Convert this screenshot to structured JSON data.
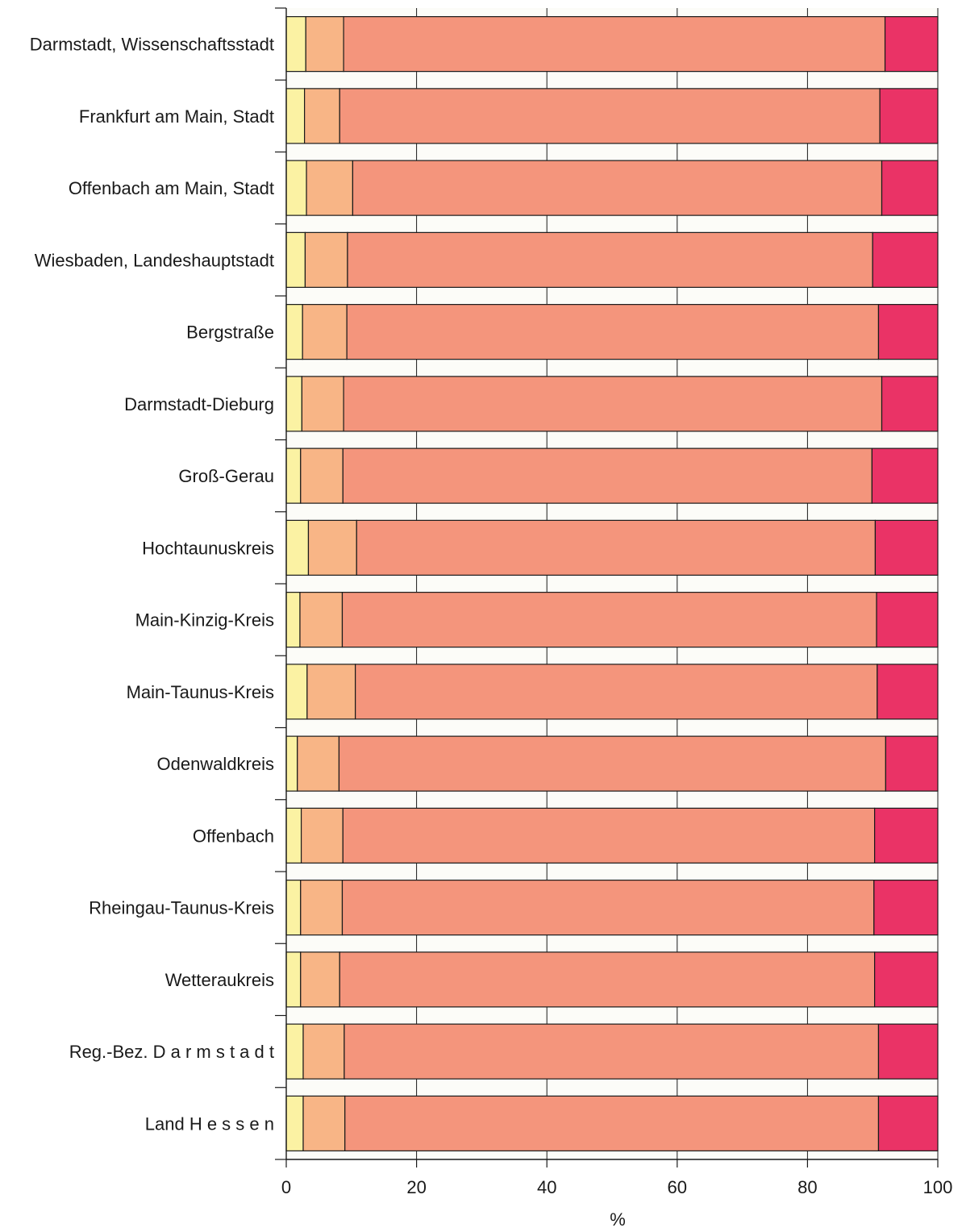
{
  "chart_data": {
    "type": "bar",
    "orientation": "horizontal",
    "stacked": true,
    "xlabel": "%",
    "xlim": [
      0,
      100
    ],
    "xticks": [
      0,
      20,
      40,
      60,
      80,
      100
    ],
    "xtick_labels": [
      "0",
      "20",
      "40",
      "60",
      "80",
      "100"
    ],
    "grid": true,
    "categories": [
      "Darmstadt, Wissenschaftsstadt",
      "Frankfurt am Main, Stadt",
      "Offenbach am Main, Stadt",
      "Wiesbaden, Landeshauptstadt",
      "Bergstraße",
      "Darmstadt-Dieburg",
      "Groß-Gerau",
      "Hochtaunuskreis",
      "Main-Kinzig-Kreis",
      "Main-Taunus-Kreis",
      "Odenwaldkreis",
      "Offenbach",
      "Rheingau-Taunus-Kreis",
      "Wetteraukreis",
      "Reg.-Bez. D a r m s t a d t",
      "Land H e s s e n"
    ],
    "series": [
      {
        "color": "#FBF2A3",
        "values": [
          3.0,
          2.8,
          3.1,
          2.9,
          2.5,
          2.4,
          2.2,
          3.4,
          2.1,
          3.2,
          1.7,
          2.3,
          2.2,
          2.2,
          2.6,
          2.6
        ]
      },
      {
        "color": "#F8B586",
        "values": [
          5.8,
          5.4,
          7.1,
          6.5,
          6.8,
          6.4,
          6.5,
          7.4,
          6.5,
          7.4,
          6.4,
          6.4,
          6.4,
          6.0,
          6.3,
          6.4
        ]
      },
      {
        "color": "#F4957C",
        "values": [
          83.1,
          82.9,
          81.2,
          80.6,
          81.6,
          82.6,
          81.2,
          79.6,
          82.0,
          80.1,
          83.9,
          81.6,
          81.6,
          82.1,
          82.0,
          81.9
        ]
      },
      {
        "color": "#EA3366",
        "values": [
          8.1,
          8.9,
          8.6,
          10.0,
          9.1,
          8.6,
          10.1,
          9.6,
          9.4,
          9.3,
          8.0,
          9.7,
          9.8,
          9.7,
          9.1,
          9.1
        ]
      }
    ]
  }
}
